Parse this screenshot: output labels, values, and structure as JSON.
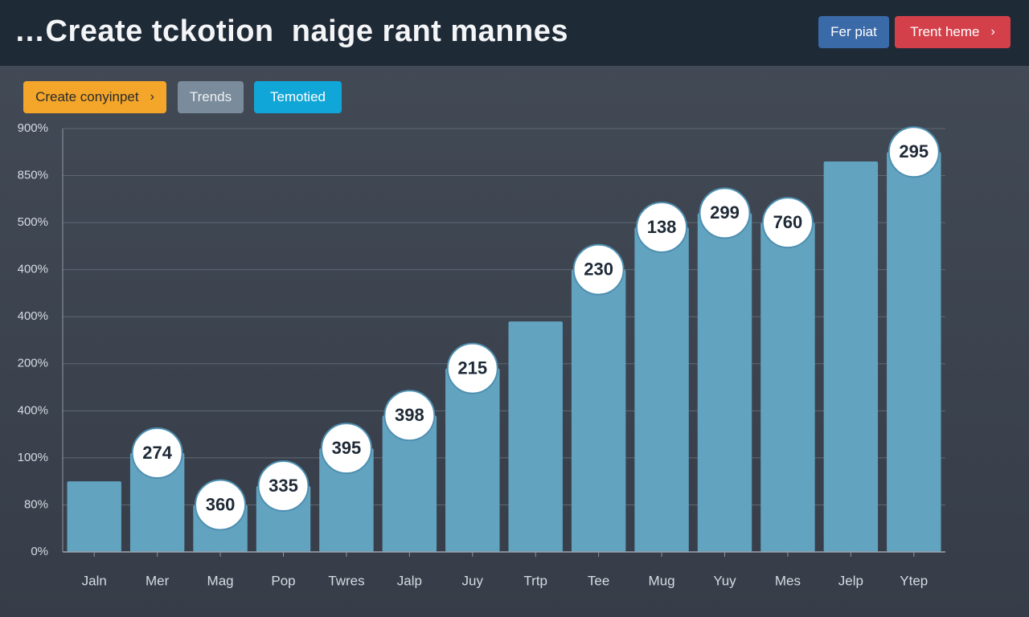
{
  "header": {
    "title": "…Create tckotion  naige rant mannes",
    "buttons": [
      "Fer piat",
      "Trent heme"
    ]
  },
  "toolbar": {
    "buttons": [
      "Create conyinpet",
      "Trends",
      "Temotied"
    ]
  },
  "chart_data": {
    "type": "bar",
    "categories": [
      "Jaln",
      "Mer",
      "Mag",
      "Pop",
      "Twres",
      "Jalp",
      "Juy",
      "Trtp",
      "Tee",
      "Mug",
      "Yuy",
      "Mes",
      "Jelp",
      "Ytep"
    ],
    "values": [
      1.5,
      2.1,
      1.0,
      1.4,
      2.2,
      2.9,
      3.9,
      4.9,
      6.0,
      6.9,
      7.2,
      7.0,
      8.3,
      8.5
    ],
    "bubble_labels": [
      null,
      "274",
      "360",
      "335",
      "395",
      "398",
      "215",
      null,
      "230",
      "138",
      "299",
      "760",
      null,
      "295"
    ],
    "color": "#62a3c0",
    "ylim": [
      0,
      9
    ],
    "yticks": [
      {
        "value": 0,
        "label": "0%"
      },
      {
        "value": 1,
        "label": "80%"
      },
      {
        "value": 2,
        "label": "100%"
      },
      {
        "value": 3,
        "label": "400%"
      },
      {
        "value": 4,
        "label": "200%"
      },
      {
        "value": 5,
        "label": "400%"
      },
      {
        "value": 6,
        "label": "400%"
      },
      {
        "value": 7,
        "label": "500%"
      },
      {
        "value": 8,
        "label": "850%"
      },
      {
        "value": 9,
        "label": "900%"
      }
    ],
    "grid": true
  }
}
